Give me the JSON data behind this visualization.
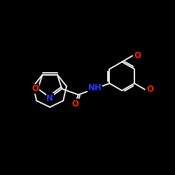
{
  "background_color": "#000000",
  "bond_color": "#ffffff",
  "atom_colors": {
    "O": "#ff2200",
    "N": "#3333ff",
    "C": "#ffffff"
  },
  "font_size_atom": 8.5,
  "figsize": [
    2.5,
    2.5
  ],
  "dpi": 100
}
